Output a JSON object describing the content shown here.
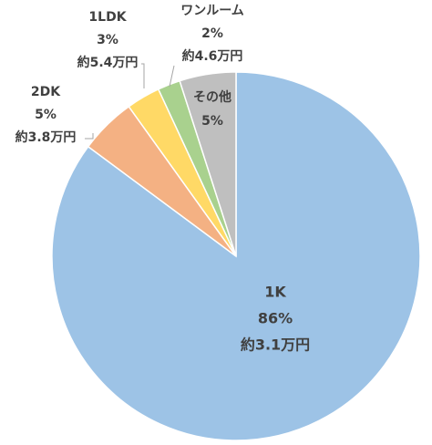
{
  "chart_data": {
    "type": "pie",
    "categories": [
      "1K",
      "2DK",
      "1LDK",
      "ワンルーム",
      "その他"
    ],
    "values": [
      86,
      5,
      3,
      2,
      5
    ],
    "value_labels": [
      "86%",
      "5%",
      "3%",
      "2%",
      "5%"
    ],
    "sublabels": [
      "約3.1万円",
      "約3.8万円",
      "約5.4万円",
      "約4.6万円",
      null
    ],
    "colors": [
      "#9dc3e6",
      "#f4b183",
      "#ffd966",
      "#a9d18e",
      "#bfbfbf"
    ]
  }
}
